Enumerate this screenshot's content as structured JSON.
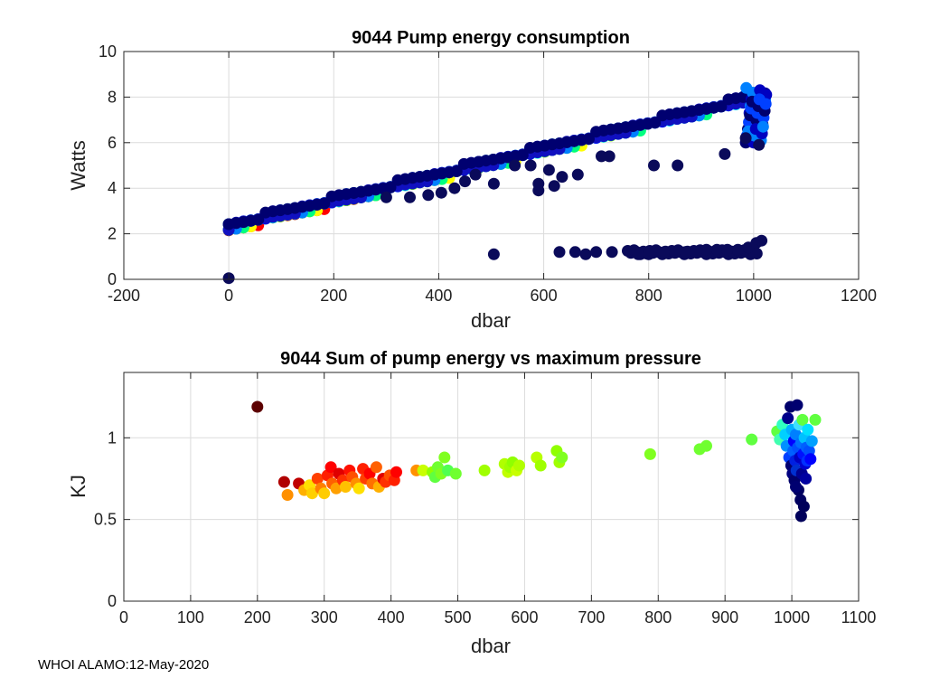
{
  "chart_data": [
    {
      "type": "scatter",
      "title": "9044 Pump energy consumption",
      "xlabel": "dbar",
      "ylabel": "Watts",
      "xlim": [
        -200,
        1200
      ],
      "ylim": [
        0,
        10
      ],
      "xticks": [
        -200,
        0,
        200,
        400,
        600,
        800,
        1000,
        1200
      ],
      "yticks": [
        0,
        2,
        4,
        6,
        8,
        10
      ],
      "grid": true,
      "trend_band": {
        "description": "dense band of points from ~2.3 W at 0 dbar to ~8.2 W at 1030 dbar, coloured by profile (dark red/yellow/green/cyan/blue/navy)"
      },
      "outliers": [
        {
          "x": 0,
          "y": 0.05
        },
        {
          "x": 505,
          "y": 1.1
        },
        {
          "x": 630,
          "y": 1.2
        },
        {
          "x": 660,
          "y": 1.2
        },
        {
          "x": 680,
          "y": 1.1
        },
        {
          "x": 700,
          "y": 1.2
        },
        {
          "x": 730,
          "y": 1.2
        },
        {
          "x": 780,
          "y": 1.1
        },
        {
          "x": 800,
          "y": 1.1
        },
        {
          "x": 830,
          "y": 1.2
        },
        {
          "x": 850,
          "y": 1.2
        },
        {
          "x": 870,
          "y": 1.2
        },
        {
          "x": 890,
          "y": 1.2
        },
        {
          "x": 910,
          "y": 1.3
        },
        {
          "x": 930,
          "y": 1.3
        },
        {
          "x": 950,
          "y": 1.3
        },
        {
          "x": 970,
          "y": 1.3
        },
        {
          "x": 990,
          "y": 1.4
        },
        {
          "x": 1005,
          "y": 1.6
        },
        {
          "x": 1015,
          "y": 1.7
        },
        {
          "x": 300,
          "y": 3.6
        },
        {
          "x": 345,
          "y": 3.6
        },
        {
          "x": 380,
          "y": 3.7
        },
        {
          "x": 405,
          "y": 3.8
        },
        {
          "x": 430,
          "y": 4.0
        },
        {
          "x": 450,
          "y": 4.3
        },
        {
          "x": 470,
          "y": 4.6
        },
        {
          "x": 505,
          "y": 4.2
        },
        {
          "x": 545,
          "y": 5.0
        },
        {
          "x": 575,
          "y": 5.0
        },
        {
          "x": 590,
          "y": 4.2
        },
        {
          "x": 590,
          "y": 3.9
        },
        {
          "x": 610,
          "y": 4.8
        },
        {
          "x": 620,
          "y": 4.1
        },
        {
          "x": 635,
          "y": 4.5
        },
        {
          "x": 665,
          "y": 4.6
        },
        {
          "x": 710,
          "y": 5.4
        },
        {
          "x": 725,
          "y": 5.4
        },
        {
          "x": 810,
          "y": 5.0
        },
        {
          "x": 855,
          "y": 5.0
        },
        {
          "x": 945,
          "y": 5.5
        },
        {
          "x": 985,
          "y": 6.2
        },
        {
          "x": 1010,
          "y": 5.9
        }
      ]
    },
    {
      "type": "scatter",
      "title": "9044 Sum of pump energy vs maximum pressure",
      "xlabel": "dbar",
      "ylabel": "KJ",
      "xlim": [
        0,
        1100
      ],
      "ylim": [
        0,
        1.4
      ],
      "xticks": [
        0,
        100,
        200,
        300,
        400,
        500,
        600,
        700,
        800,
        900,
        1000,
        1100
      ],
      "yticks": [
        0,
        0.5,
        1
      ],
      "ytick_labels": [
        "0",
        "0.5",
        "1"
      ],
      "grid": true,
      "points": [
        {
          "x": 200,
          "y": 1.19,
          "color": "#5c0000"
        },
        {
          "x": 240,
          "y": 0.73,
          "color": "#b00000"
        },
        {
          "x": 245,
          "y": 0.65,
          "color": "#ff9000"
        },
        {
          "x": 262,
          "y": 0.72,
          "color": "#c00000"
        },
        {
          "x": 270,
          "y": 0.68,
          "color": "#ffb000"
        },
        {
          "x": 278,
          "y": 0.71,
          "color": "#ffe000"
        },
        {
          "x": 282,
          "y": 0.66,
          "color": "#ffd000"
        },
        {
          "x": 290,
          "y": 0.75,
          "color": "#ff4000"
        },
        {
          "x": 295,
          "y": 0.69,
          "color": "#ff8000"
        },
        {
          "x": 300,
          "y": 0.66,
          "color": "#ffcc00"
        },
        {
          "x": 305,
          "y": 0.77,
          "color": "#ff2000"
        },
        {
          "x": 310,
          "y": 0.82,
          "color": "#ff0000"
        },
        {
          "x": 312,
          "y": 0.72,
          "color": "#ff6000"
        },
        {
          "x": 318,
          "y": 0.69,
          "color": "#ffa000"
        },
        {
          "x": 322,
          "y": 0.78,
          "color": "#e00000"
        },
        {
          "x": 328,
          "y": 0.74,
          "color": "#ff3000"
        },
        {
          "x": 332,
          "y": 0.7,
          "color": "#ffc000"
        },
        {
          "x": 338,
          "y": 0.8,
          "color": "#ff1000"
        },
        {
          "x": 342,
          "y": 0.76,
          "color": "#ff5000"
        },
        {
          "x": 348,
          "y": 0.72,
          "color": "#ff9000"
        },
        {
          "x": 352,
          "y": 0.69,
          "color": "#ffe000"
        },
        {
          "x": 358,
          "y": 0.81,
          "color": "#ff2000"
        },
        {
          "x": 362,
          "y": 0.75,
          "color": "#ff4000"
        },
        {
          "x": 368,
          "y": 0.78,
          "color": "#ff0000"
        },
        {
          "x": 372,
          "y": 0.72,
          "color": "#ff7000"
        },
        {
          "x": 378,
          "y": 0.82,
          "color": "#ff6000"
        },
        {
          "x": 382,
          "y": 0.7,
          "color": "#ffb000"
        },
        {
          "x": 388,
          "y": 0.75,
          "color": "#e00000"
        },
        {
          "x": 392,
          "y": 0.73,
          "color": "#ff3000"
        },
        {
          "x": 398,
          "y": 0.77,
          "color": "#ff5000"
        },
        {
          "x": 405,
          "y": 0.74,
          "color": "#ff2000"
        },
        {
          "x": 408,
          "y": 0.79,
          "color": "#ff0000"
        },
        {
          "x": 438,
          "y": 0.8,
          "color": "#ff9000"
        },
        {
          "x": 448,
          "y": 0.8,
          "color": "#c8ff00"
        },
        {
          "x": 462,
          "y": 0.79,
          "color": "#90ff00"
        },
        {
          "x": 466,
          "y": 0.76,
          "color": "#60ff40"
        },
        {
          "x": 470,
          "y": 0.82,
          "color": "#70ff30"
        },
        {
          "x": 475,
          "y": 0.78,
          "color": "#80ff20"
        },
        {
          "x": 480,
          "y": 0.88,
          "color": "#80ff20"
        },
        {
          "x": 485,
          "y": 0.8,
          "color": "#50ff50"
        },
        {
          "x": 497,
          "y": 0.78,
          "color": "#70ff30"
        },
        {
          "x": 540,
          "y": 0.8,
          "color": "#a0ff00"
        },
        {
          "x": 570,
          "y": 0.84,
          "color": "#b0ff00"
        },
        {
          "x": 575,
          "y": 0.79,
          "color": "#c0ff00"
        },
        {
          "x": 578,
          "y": 0.82,
          "color": "#a0ff00"
        },
        {
          "x": 582,
          "y": 0.85,
          "color": "#90ff00"
        },
        {
          "x": 588,
          "y": 0.8,
          "color": "#c8ff00"
        },
        {
          "x": 592,
          "y": 0.83,
          "color": "#b0ff00"
        },
        {
          "x": 618,
          "y": 0.88,
          "color": "#b8ff00"
        },
        {
          "x": 624,
          "y": 0.83,
          "color": "#a0ff00"
        },
        {
          "x": 648,
          "y": 0.92,
          "color": "#90ff00"
        },
        {
          "x": 652,
          "y": 0.85,
          "color": "#a0ff00"
        },
        {
          "x": 656,
          "y": 0.88,
          "color": "#80ff20"
        },
        {
          "x": 788,
          "y": 0.9,
          "color": "#80ff20"
        },
        {
          "x": 862,
          "y": 0.93,
          "color": "#70ff30"
        },
        {
          "x": 872,
          "y": 0.95,
          "color": "#70ff30"
        },
        {
          "x": 940,
          "y": 0.99,
          "color": "#60ff40"
        },
        {
          "x": 978,
          "y": 1.04,
          "color": "#60ff40"
        },
        {
          "x": 982,
          "y": 0.99,
          "color": "#40ffb0"
        },
        {
          "x": 986,
          "y": 1.08,
          "color": "#30ffc0"
        },
        {
          "x": 990,
          "y": 1.02,
          "color": "#00d0ff"
        },
        {
          "x": 992,
          "y": 0.95,
          "color": "#0090ff"
        },
        {
          "x": 994,
          "y": 1.12,
          "color": "#00008a"
        },
        {
          "x": 996,
          "y": 0.88,
          "color": "#0040ff"
        },
        {
          "x": 998,
          "y": 1.19,
          "color": "#00006a"
        },
        {
          "x": 999,
          "y": 0.83,
          "color": "#000070"
        },
        {
          "x": 1000,
          "y": 1.05,
          "color": "#00b0ff"
        },
        {
          "x": 1001,
          "y": 0.78,
          "color": "#000080"
        },
        {
          "x": 1002,
          "y": 0.92,
          "color": "#0060ff"
        },
        {
          "x": 1003,
          "y": 0.98,
          "color": "#0000ff"
        },
        {
          "x": 1004,
          "y": 0.74,
          "color": "#00006a"
        },
        {
          "x": 1005,
          "y": 0.86,
          "color": "#0020e0"
        },
        {
          "x": 1006,
          "y": 1.02,
          "color": "#0080ff"
        },
        {
          "x": 1007,
          "y": 0.8,
          "color": "#0030d0"
        },
        {
          "x": 1008,
          "y": 1.2,
          "color": "#000070"
        },
        {
          "x": 1009,
          "y": 0.94,
          "color": "#0050ff"
        },
        {
          "x": 1010,
          "y": 0.68,
          "color": "#000060"
        },
        {
          "x": 1011,
          "y": 1.08,
          "color": "#40e0ff"
        },
        {
          "x": 1012,
          "y": 0.88,
          "color": "#0000c0"
        },
        {
          "x": 1013,
          "y": 0.62,
          "color": "#000060"
        },
        {
          "x": 1014,
          "y": 0.97,
          "color": "#0070ff"
        },
        {
          "x": 1015,
          "y": 0.78,
          "color": "#000090"
        },
        {
          "x": 1016,
          "y": 1.11,
          "color": "#60ff40"
        },
        {
          "x": 1017,
          "y": 0.9,
          "color": "#0010ff"
        },
        {
          "x": 1018,
          "y": 0.58,
          "color": "#00005a"
        },
        {
          "x": 1019,
          "y": 1.0,
          "color": "#00c0ff"
        },
        {
          "x": 1020,
          "y": 0.84,
          "color": "#0000d0"
        },
        {
          "x": 1021,
          "y": 0.75,
          "color": "#0000a0"
        },
        {
          "x": 1022,
          "y": 0.94,
          "color": "#0060ff"
        },
        {
          "x": 1023,
          "y": 0.86,
          "color": "#0030ff"
        },
        {
          "x": 1024,
          "y": 1.05,
          "color": "#00e0ff"
        },
        {
          "x": 1026,
          "y": 0.92,
          "color": "#0050ff"
        },
        {
          "x": 1028,
          "y": 0.87,
          "color": "#0000ff"
        },
        {
          "x": 1030,
          "y": 0.98,
          "color": "#00a0ff"
        },
        {
          "x": 1035,
          "y": 1.11,
          "color": "#60ff40"
        },
        {
          "x": 1014,
          "y": 0.52,
          "color": "#00005a"
        },
        {
          "x": 1006,
          "y": 0.7,
          "color": "#000070"
        }
      ]
    }
  ],
  "footer": "WHOI ALAMO:12-May-2020"
}
